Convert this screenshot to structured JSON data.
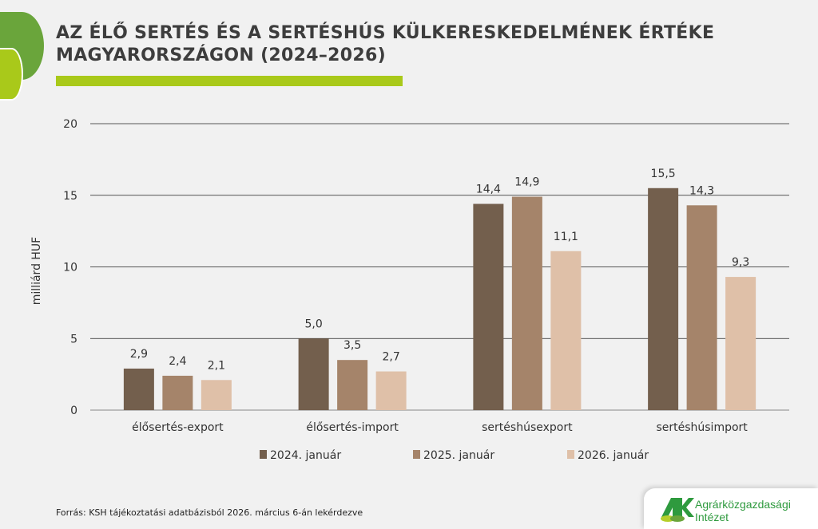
{
  "title": "AZ ÉLŐ SERTÉS ÉS A SERTÉSHÚS KÜLKERESKEDELMÉNEK ÉRTÉKE MAGYARORSZÁGON (2024–2026)",
  "source": "Forrás: KSH tájékoztatási adatbázisból 2026. március 6-án lekérdezve",
  "logo": {
    "mark": "AKI",
    "line1": "Agrárközgazdasági",
    "line2": "Intézet"
  },
  "chart_data": {
    "type": "bar",
    "title": "",
    "ylabel": "milliárd HUF",
    "xlabel": "",
    "ylim": [
      0,
      20
    ],
    "yticks": [
      0,
      5,
      10,
      15,
      20
    ],
    "grid": true,
    "legend_position": "bottom",
    "categories": [
      "élősertés-export",
      "élősertés-import",
      "sertéshúsexport",
      "sertéshúsimport"
    ],
    "series": [
      {
        "name": "2024. január",
        "color": "#735f4d",
        "values": [
          2.9,
          5.0,
          14.4,
          15.5
        ],
        "labels": [
          "2,9",
          "5,0",
          "14,4",
          "15,5"
        ]
      },
      {
        "name": "2025. január",
        "color": "#a5846a",
        "values": [
          2.4,
          3.5,
          14.9,
          14.3
        ],
        "labels": [
          "2,4",
          "3,5",
          "14,9",
          "14,3"
        ]
      },
      {
        "name": "2026. január",
        "color": "#dfc0a8",
        "values": [
          2.1,
          2.7,
          11.1,
          9.3
        ],
        "labels": [
          "2,1",
          "2,7",
          "11,1",
          "9,3"
        ]
      }
    ]
  }
}
